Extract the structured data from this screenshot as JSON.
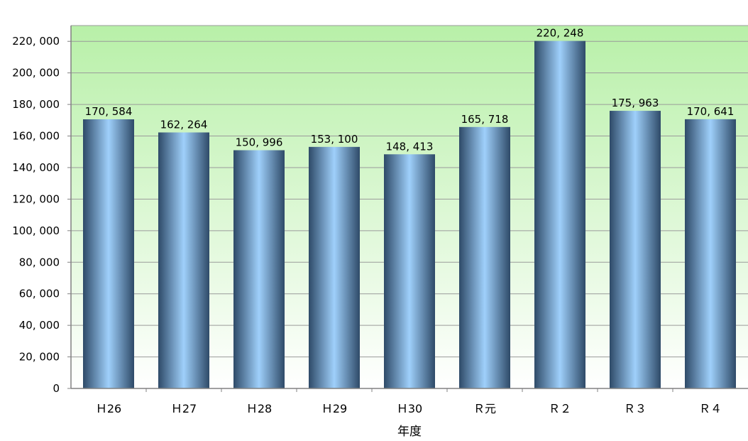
{
  "chart_data": {
    "type": "bar",
    "categories": [
      "H26",
      "H27",
      "H28",
      "H29",
      "H30",
      "R元",
      "R2",
      "R3",
      "R4"
    ],
    "category_labels": [
      "Ｈ26",
      "Ｈ27",
      "Ｈ28",
      "Ｈ29",
      "Ｈ30",
      "Ｒ元",
      "Ｒ２",
      "Ｒ３",
      "Ｒ４"
    ],
    "values": [
      170584,
      162264,
      150996,
      153100,
      148413,
      165718,
      220248,
      175963,
      170641
    ],
    "data_labels": [
      "170, 584",
      "162, 264",
      "150, 996",
      "153, 100",
      "148, 413",
      "165, 718",
      "220, 248",
      "175, 963",
      "170, 641"
    ],
    "title": "",
    "xlabel": "年度",
    "ylabel": "",
    "ylim": [
      0,
      230000
    ],
    "yticks": [
      0,
      20000,
      40000,
      60000,
      80000,
      100000,
      120000,
      140000,
      160000,
      180000,
      200000,
      220000
    ],
    "ytick_labels": [
      "0",
      "20, 000",
      "40, 000",
      "60, 000",
      "80, 000",
      "100, 000",
      "120, 000",
      "140, 000",
      "160, 000",
      "180, 000",
      "200, 000",
      "220, 000"
    ],
    "grid": true,
    "legend": "none",
    "colors": {
      "bar_center": "#9fd0fb",
      "bar_edge": "#2e4a68",
      "plot_bg_top": "#b8f0a8",
      "plot_bg_bottom": "#ffffff",
      "grid": "#9a9a9a",
      "axis": "#808080"
    }
  }
}
